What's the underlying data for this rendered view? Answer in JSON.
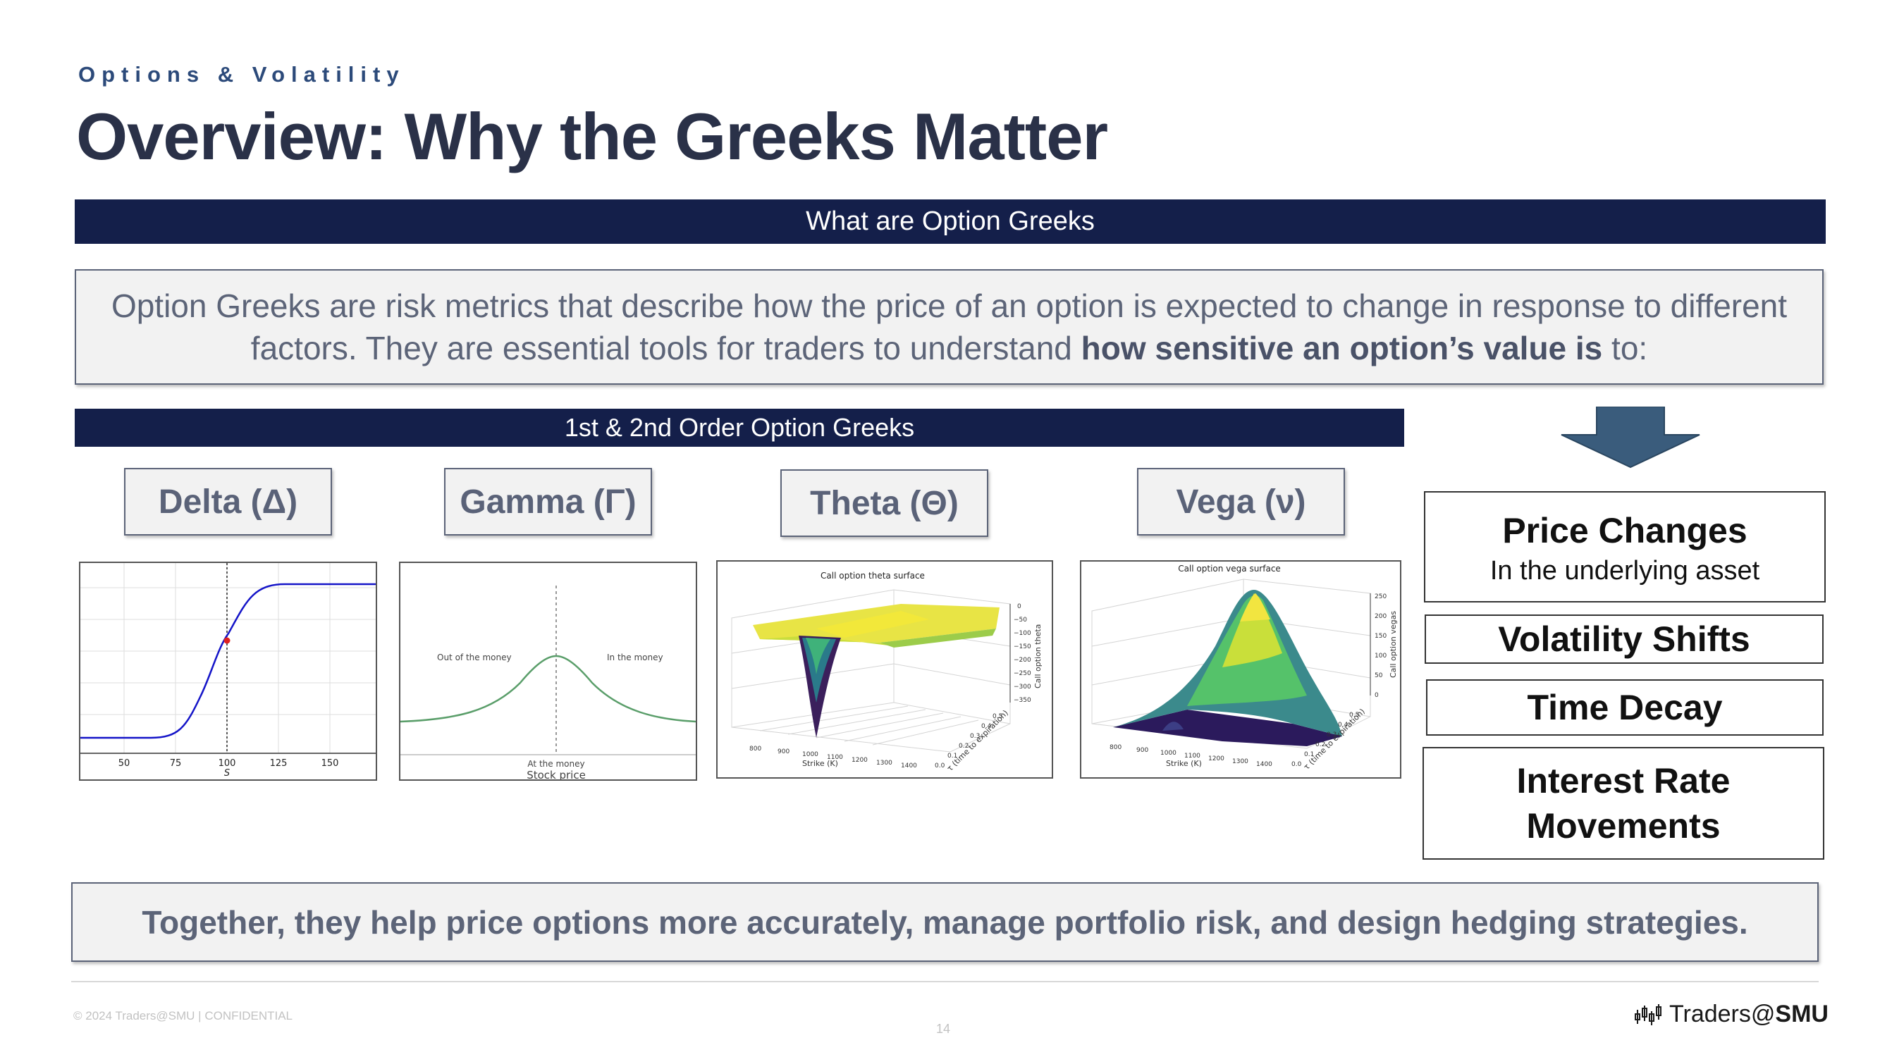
{
  "header": {
    "eyebrow": "Options & Volatility",
    "title": "Overview: Why the Greeks Matter"
  },
  "section_bar": "What are Option Greeks",
  "intro": {
    "text_plain": "Option Greeks are risk metrics that describe how the price of an option is expected to change in response to different factors. They are essential tools for traders to understand ",
    "text_bold": "how sensitive an option’s value is",
    "text_end": " to:"
  },
  "greeks_bar": "1st & 2nd Order Option Greeks",
  "greeks": [
    {
      "label": "Delta (Δ)"
    },
    {
      "label": "Gamma (Γ)"
    },
    {
      "label": "Theta (Θ)"
    },
    {
      "label": "Vega (ν)"
    }
  ],
  "delta_chart": {
    "x_ticks": [
      "50",
      "75",
      "100",
      "125",
      "150"
    ],
    "xlabel": "S"
  },
  "gamma_chart": {
    "left_label": "Out of the money",
    "right_label": "In the money",
    "bottom_label": "At the money",
    "xlabel": "Stock price"
  },
  "theta_chart": {
    "title": "Call option theta surface",
    "zlabel": "Call option theta",
    "z_ticks": [
      "0",
      "−50",
      "−100",
      "−150",
      "−200",
      "−250",
      "−300",
      "−350"
    ],
    "x_ticks": [
      "800",
      "900",
      "1000",
      "1100",
      "1200",
      "1300",
      "1400"
    ],
    "xlabel": "Strike (K)",
    "ylabel": "τ (time to expiration)",
    "y_ticks": [
      "0.0",
      "0.1",
      "0.2",
      "0.3",
      "0.4",
      "0.5"
    ]
  },
  "vega_chart": {
    "title": "Call option vega surface",
    "zlabel": "Call option vegas",
    "z_ticks": [
      "250",
      "200",
      "150",
      "100",
      "50",
      "0"
    ],
    "x_ticks": [
      "800",
      "900",
      "1000",
      "1100",
      "1200",
      "1300",
      "1400"
    ],
    "xlabel": "Strike (K)",
    "ylabel": "τ (time to expiration)",
    "y_ticks": [
      "0.0",
      "0.1",
      "0.2",
      "0.3",
      "0.4",
      "0.5"
    ]
  },
  "impacts": [
    {
      "title": "Price Changes",
      "subtitle": "In the underlying asset"
    },
    {
      "title": "Volatility Shifts"
    },
    {
      "title": "Time Decay"
    },
    {
      "title": "Interest Rate Movements"
    }
  ],
  "summary": "Together, they help price options more accurately, manage portfolio risk, and design hedging strategies.",
  "footer": {
    "left": "© 2024 Traders@SMU | CONFIDENTIAL",
    "page": "14",
    "brand_prefix": "Traders@",
    "brand_bold": "SMU"
  },
  "colors": {
    "navy": "#141f4a",
    "arrow": "#3a5c7c",
    "delta_line": "#1414c8",
    "gamma_line": "#5a9e6a"
  }
}
